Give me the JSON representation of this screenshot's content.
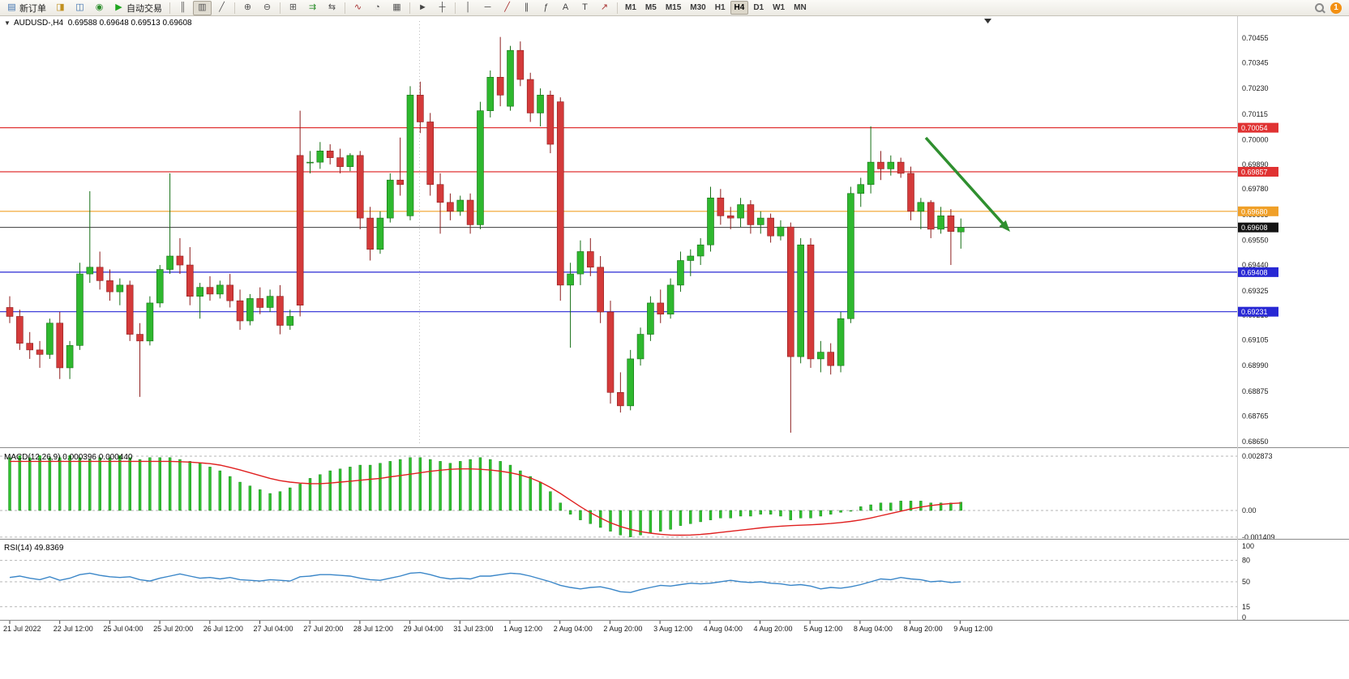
{
  "toolbar": {
    "items": [
      {
        "kind": "labelbtn",
        "name": "new-order-button",
        "icon": "new-order-icon",
        "label": "新订单"
      },
      {
        "kind": "icon",
        "name": "profiles-button",
        "icon": "profiles-icon"
      },
      {
        "kind": "icon",
        "name": "market-watch-button",
        "icon": "market-watch-icon"
      },
      {
        "kind": "icon",
        "name": "data-window-button",
        "icon": "data-window-icon"
      },
      {
        "kind": "labelbtn",
        "name": "auto-trading-button",
        "icon": "play-icon",
        "label": "自动交易"
      },
      {
        "kind": "sep"
      },
      {
        "kind": "icon",
        "name": "bar-chart-button",
        "icon": "bars-icon"
      },
      {
        "kind": "icon",
        "name": "candlestick-chart-button",
        "icon": "candles-icon",
        "active": true
      },
      {
        "kind": "icon",
        "name": "line-chart-button",
        "icon": "line-chart-icon"
      },
      {
        "kind": "sep"
      },
      {
        "kind": "icon",
        "name": "zoom-in-button",
        "icon": "zoom-in-icon"
      },
      {
        "kind": "icon",
        "name": "zoom-out-button",
        "icon": "zoom-out-icon"
      },
      {
        "kind": "sep"
      },
      {
        "kind": "icon",
        "name": "tile-windows-button",
        "icon": "tile-icon"
      },
      {
        "kind": "icon",
        "name": "auto-scroll-button",
        "icon": "auto-scroll-icon"
      },
      {
        "kind": "icon",
        "name": "chart-shift-button",
        "icon": "chart-shift-icon"
      },
      {
        "kind": "sep"
      },
      {
        "kind": "icon",
        "name": "indicators-button",
        "icon": "indicators-icon"
      },
      {
        "kind": "icon",
        "name": "periods-button",
        "icon": "clock-icon"
      },
      {
        "kind": "icon",
        "name": "templates-button",
        "icon": "template-icon"
      },
      {
        "kind": "sep"
      },
      {
        "kind": "icon",
        "name": "cursor-button",
        "icon": "cursor-icon"
      },
      {
        "kind": "icon",
        "name": "crosshair-button",
        "icon": "crosshair-icon"
      },
      {
        "kind": "sep"
      },
      {
        "kind": "icon",
        "name": "vertical-line-button",
        "icon": "vline-icon"
      },
      {
        "kind": "icon",
        "name": "horizontal-line-button",
        "icon": "hline-icon"
      },
      {
        "kind": "icon",
        "name": "trendline-button",
        "icon": "trendline-icon"
      },
      {
        "kind": "icon",
        "name": "channel-button",
        "icon": "channel-icon"
      },
      {
        "kind": "icon",
        "name": "fibonacci-button",
        "icon": "fibonacci-icon"
      },
      {
        "kind": "icon",
        "name": "text-button",
        "icon": "text-icon"
      },
      {
        "kind": "icon",
        "name": "label-button",
        "icon": "label-icon"
      },
      {
        "kind": "icon",
        "name": "arrows-button",
        "icon": "arrows-icon"
      },
      {
        "kind": "sep"
      }
    ],
    "timeframes": [
      "M1",
      "M5",
      "M15",
      "M30",
      "H1",
      "H4",
      "D1",
      "W1",
      "MN"
    ],
    "active_timeframe": "H4",
    "notification_count": "1"
  },
  "chart": {
    "symbol_period": "AUDUSD-,H4",
    "ohlc": "0.69588 0.69648 0.69513 0.69608",
    "price_axis": [
      "0.70455",
      "0.70345",
      "0.70230",
      "0.70115",
      "0.70000",
      "0.69890",
      "0.69780",
      "0.69665",
      "0.69550",
      "0.69440",
      "0.69325",
      "0.69215",
      "0.69105",
      "0.68990",
      "0.68875",
      "0.68765",
      "0.68650"
    ],
    "hlines": [
      {
        "price": "0.70054",
        "color": "#e03232",
        "name": "resistance-line-upper"
      },
      {
        "price": "0.69857",
        "color": "#e03232",
        "name": "resistance-line-lower"
      },
      {
        "price": "0.69680",
        "color": "#f0a028",
        "name": "pivot-line"
      },
      {
        "price": "0.69608",
        "color": "#3a3a3a",
        "name": "current-price-line",
        "current": true,
        "box": "#141414"
      },
      {
        "price": "0.69408",
        "color": "#2828d4",
        "name": "support-line-upper"
      },
      {
        "price": "0.69231",
        "color": "#2828d4",
        "name": "support-line-lower"
      }
    ],
    "time_axis": [
      "21 Jul 2022",
      "22 Jul 12:00",
      "25 Jul 04:00",
      "25 Jul 20:00",
      "26 Jul 12:00",
      "27 Jul 04:00",
      "27 Jul 20:00",
      "28 Jul 12:00",
      "29 Jul 04:00",
      "31 Jul 23:00",
      "1 Aug 12:00",
      "2 Aug 04:00",
      "2 Aug 20:00",
      "3 Aug 12:00",
      "4 Aug 04:00",
      "4 Aug 20:00",
      "5 Aug 12:00",
      "8 Aug 04:00",
      "8 Aug 20:00",
      "9 Aug 12:00"
    ]
  },
  "macd": {
    "label": "MACD(12,26,9) 0.000396 0.000440",
    "axis": [
      "0.002873",
      "0.00",
      "-0.001409"
    ],
    "axis_values": [
      0.002873,
      0,
      -0.001409
    ]
  },
  "rsi": {
    "label": "RSI(14) 49.8369",
    "axis": [
      "100",
      "80",
      "50",
      "15",
      "0"
    ],
    "axis_values": [
      100,
      80,
      50,
      15,
      0
    ],
    "level_lines": [
      80,
      50,
      15
    ]
  },
  "chart_data": [
    {
      "type": "candlestick",
      "title": "AUDUSD-,H4",
      "up_color": "#2eb82e",
      "down_color": "#d43a3a",
      "ylim": [
        0.6865,
        0.70455
      ],
      "candles": [
        [
          0.6925,
          0.693,
          0.6918,
          0.6921
        ],
        [
          0.6921,
          0.6924,
          0.6906,
          0.6909
        ],
        [
          0.6909,
          0.6914,
          0.6902,
          0.6906
        ],
        [
          0.6906,
          0.691,
          0.6898,
          0.6904
        ],
        [
          0.6904,
          0.692,
          0.6902,
          0.6918
        ],
        [
          0.6918,
          0.6923,
          0.6893,
          0.6898
        ],
        [
          0.6898,
          0.691,
          0.6893,
          0.6908
        ],
        [
          0.6908,
          0.6945,
          0.6906,
          0.694
        ],
        [
          0.694,
          0.6977,
          0.6936,
          0.6943
        ],
        [
          0.6943,
          0.695,
          0.6933,
          0.6937
        ],
        [
          0.6937,
          0.6942,
          0.6928,
          0.6932
        ],
        [
          0.6932,
          0.6938,
          0.6926,
          0.6935
        ],
        [
          0.6935,
          0.6937,
          0.691,
          0.6913
        ],
        [
          0.6913,
          0.6918,
          0.6885,
          0.691
        ],
        [
          0.691,
          0.693,
          0.6908,
          0.6927
        ],
        [
          0.6927,
          0.6944,
          0.6925,
          0.6942
        ],
        [
          0.6942,
          0.6985,
          0.694,
          0.6948
        ],
        [
          0.6948,
          0.6956,
          0.694,
          0.6944
        ],
        [
          0.6944,
          0.6952,
          0.6926,
          0.693
        ],
        [
          0.693,
          0.6936,
          0.692,
          0.6934
        ],
        [
          0.6934,
          0.6939,
          0.6928,
          0.6931
        ],
        [
          0.6931,
          0.6937,
          0.6929,
          0.6935
        ],
        [
          0.6935,
          0.694,
          0.6925,
          0.6928
        ],
        [
          0.6928,
          0.6933,
          0.6915,
          0.6919
        ],
        [
          0.6919,
          0.6931,
          0.6917,
          0.6929
        ],
        [
          0.6929,
          0.6934,
          0.6922,
          0.6925
        ],
        [
          0.6925,
          0.6933,
          0.6923,
          0.693
        ],
        [
          0.693,
          0.6935,
          0.6913,
          0.6917
        ],
        [
          0.6917,
          0.6924,
          0.6915,
          0.6921
        ],
        [
          0.6993,
          0.7013,
          0.6921,
          0.6926
        ],
        [
          0.699,
          0.6995,
          0.6985,
          0.699
        ],
        [
          0.699,
          0.6999,
          0.6987,
          0.6995
        ],
        [
          0.6995,
          0.6998,
          0.6989,
          0.6992
        ],
        [
          0.6992,
          0.6996,
          0.6985,
          0.6988
        ],
        [
          0.6988,
          0.6994,
          0.6986,
          0.6993
        ],
        [
          0.6993,
          0.6995,
          0.696,
          0.6965
        ],
        [
          0.6965,
          0.697,
          0.6946,
          0.6951
        ],
        [
          0.6951,
          0.6968,
          0.6949,
          0.6965
        ],
        [
          0.6965,
          0.6985,
          0.6963,
          0.6982
        ],
        [
          0.6982,
          0.7001,
          0.6975,
          0.698
        ],
        [
          0.6966,
          0.7024,
          0.6964,
          0.702
        ],
        [
          0.702,
          0.7026,
          0.7003,
          0.7008
        ],
        [
          0.7008,
          0.7012,
          0.6975,
          0.698
        ],
        [
          0.698,
          0.6985,
          0.6958,
          0.6972
        ],
        [
          0.6972,
          0.6976,
          0.6964,
          0.6968
        ],
        [
          0.6968,
          0.6975,
          0.6966,
          0.6973
        ],
        [
          0.6973,
          0.6976,
          0.6958,
          0.6962
        ],
        [
          0.6962,
          0.7017,
          0.696,
          0.7013
        ],
        [
          0.7013,
          0.7031,
          0.701,
          0.7028
        ],
        [
          0.7028,
          0.7046,
          0.7015,
          0.702
        ],
        [
          0.7015,
          0.7042,
          0.7013,
          0.704
        ],
        [
          0.704,
          0.7044,
          0.7024,
          0.7027
        ],
        [
          0.7027,
          0.703,
          0.7008,
          0.7012
        ],
        [
          0.7012,
          0.7023,
          0.7006,
          0.702
        ],
        [
          0.702,
          0.7022,
          0.6994,
          0.6998
        ],
        [
          0.7017,
          0.7019,
          0.6928,
          0.6935
        ],
        [
          0.6935,
          0.6945,
          0.6907,
          0.694
        ],
        [
          0.694,
          0.6955,
          0.6935,
          0.695
        ],
        [
          0.695,
          0.6956,
          0.6939,
          0.6943
        ],
        [
          0.6943,
          0.6948,
          0.6918,
          0.6923
        ],
        [
          0.6923,
          0.6928,
          0.6882,
          0.6887
        ],
        [
          0.6887,
          0.6896,
          0.6878,
          0.6881
        ],
        [
          0.6881,
          0.6906,
          0.6879,
          0.6902
        ],
        [
          0.6902,
          0.6916,
          0.6899,
          0.6913
        ],
        [
          0.6913,
          0.693,
          0.691,
          0.6927
        ],
        [
          0.6927,
          0.6933,
          0.6918,
          0.6922
        ],
        [
          0.6922,
          0.6938,
          0.692,
          0.6935
        ],
        [
          0.6935,
          0.695,
          0.6932,
          0.6946
        ],
        [
          0.6946,
          0.6951,
          0.6939,
          0.6948
        ],
        [
          0.6948,
          0.6956,
          0.6944,
          0.6953
        ],
        [
          0.6953,
          0.6979,
          0.695,
          0.6974
        ],
        [
          0.6974,
          0.6978,
          0.6962,
          0.6966
        ],
        [
          0.6966,
          0.697,
          0.696,
          0.6965
        ],
        [
          0.6965,
          0.6974,
          0.6961,
          0.6971
        ],
        [
          0.6971,
          0.6973,
          0.6958,
          0.6962
        ],
        [
          0.6962,
          0.6968,
          0.6958,
          0.6965
        ],
        [
          0.6965,
          0.6967,
          0.6954,
          0.6957
        ],
        [
          0.6957,
          0.6964,
          0.6955,
          0.6961
        ],
        [
          0.6961,
          0.6963,
          0.6869,
          0.6903
        ],
        [
          0.6903,
          0.6956,
          0.69,
          0.6953
        ],
        [
          0.6953,
          0.6956,
          0.6898,
          0.6902
        ],
        [
          0.6902,
          0.691,
          0.6896,
          0.6905
        ],
        [
          0.6905,
          0.6909,
          0.6895,
          0.6899
        ],
        [
          0.6899,
          0.6923,
          0.6896,
          0.692
        ],
        [
          0.692,
          0.6979,
          0.6918,
          0.6976
        ],
        [
          0.6976,
          0.6983,
          0.697,
          0.698
        ],
        [
          0.698,
          0.7006,
          0.6976,
          0.699
        ],
        [
          0.699,
          0.6995,
          0.6982,
          0.6987
        ],
        [
          0.6987,
          0.6993,
          0.6984,
          0.699
        ],
        [
          0.699,
          0.6992,
          0.6983,
          0.6985
        ],
        [
          0.6985,
          0.6988,
          0.6964,
          0.6968
        ],
        [
          0.6968,
          0.6974,
          0.696,
          0.6972
        ],
        [
          0.6972,
          0.6973,
          0.6956,
          0.696
        ],
        [
          0.696,
          0.697,
          0.6958,
          0.6966
        ],
        [
          0.6966,
          0.6969,
          0.6944,
          0.6959
        ],
        [
          0.69588,
          0.69648,
          0.69513,
          0.69608
        ]
      ]
    },
    {
      "type": "bar",
      "name": "MACD histogram",
      "color": "#2fbf2f",
      "ylim": [
        -0.001409,
        0.002873
      ],
      "values": [
        0.0028,
        0.0029,
        0.0028,
        0.0029,
        0.0028,
        0.0028,
        0.0029,
        0.0028,
        0.0027,
        0.0028,
        0.0028,
        0.0029,
        0.0028,
        0.0027,
        0.0028,
        0.0028,
        0.0028,
        0.0027,
        0.0026,
        0.0025,
        0.0023,
        0.0021,
        0.0018,
        0.0015,
        0.0013,
        0.0011,
        0.0009,
        0.001,
        0.0012,
        0.0014,
        0.0017,
        0.0019,
        0.0021,
        0.0022,
        0.0023,
        0.0024,
        0.0024,
        0.0025,
        0.0026,
        0.0027,
        0.0028,
        0.0028,
        0.0027,
        0.0026,
        0.0025,
        0.0026,
        0.0027,
        0.0028,
        0.0027,
        0.0026,
        0.0024,
        0.0021,
        0.0018,
        0.0015,
        0.001,
        0.0004,
        -0.0002,
        -0.0005,
        -0.0007,
        -0.0009,
        -0.0011,
        -0.0013,
        -0.0014,
        -0.0013,
        -0.0012,
        -0.0011,
        -0.001,
        -0.0008,
        -0.0007,
        -0.0006,
        -0.0005,
        -0.0004,
        -0.0004,
        -0.0003,
        -0.0003,
        -0.0002,
        -0.0002,
        -0.0003,
        -0.0005,
        -0.0004,
        -0.0004,
        -0.0003,
        -0.0002,
        -0.0001,
        0.0,
        0.0002,
        0.0003,
        0.0004,
        0.0004,
        0.0005,
        0.0005,
        0.0005,
        0.0004,
        0.0004,
        0.0004,
        0.00044
      ],
      "signal": {
        "name": "MACD signal",
        "color": "#e02020",
        "values": [
          0.0026,
          0.0026,
          0.0026,
          0.0026,
          0.0026,
          0.0026,
          0.0026,
          0.0026,
          0.0026,
          0.0026,
          0.0026,
          0.0026,
          0.0026,
          0.0026,
          0.0026,
          0.0026,
          0.0026,
          0.00258,
          0.00256,
          0.00252,
          0.00248,
          0.0024,
          0.00228,
          0.00215,
          0.002,
          0.00185,
          0.0017,
          0.00158,
          0.0015,
          0.00145,
          0.00142,
          0.00142,
          0.00145,
          0.0015,
          0.00155,
          0.0016,
          0.00165,
          0.0017,
          0.00178,
          0.00185,
          0.00192,
          0.002,
          0.00207,
          0.00213,
          0.00218,
          0.0022,
          0.0022,
          0.00218,
          0.00214,
          0.00208,
          0.002,
          0.00188,
          0.00172,
          0.0015,
          0.00122,
          0.0009,
          0.00055,
          0.0002,
          -0.00012,
          -0.0004,
          -0.00065,
          -0.00085,
          -0.001,
          -0.00112,
          -0.0012,
          -0.00126,
          -0.0013,
          -0.00131,
          -0.0013,
          -0.00127,
          -0.00122,
          -0.00116,
          -0.0011,
          -0.00104,
          -0.00098,
          -0.00092,
          -0.00087,
          -0.00083,
          -0.0008,
          -0.00078,
          -0.00076,
          -0.00073,
          -0.00069,
          -0.00064,
          -0.00058,
          -0.0005,
          -0.0004,
          -0.00028,
          -0.00016,
          -4e-05,
          8e-05,
          0.00018,
          0.00026,
          0.00032,
          0.00037,
          0.000396
        ]
      }
    },
    {
      "type": "line",
      "name": "RSI(14)",
      "color": "#3a86c8",
      "ylim": [
        0,
        100
      ],
      "values": [
        56,
        58,
        55,
        53,
        57,
        52,
        55,
        60,
        62,
        59,
        57,
        56,
        57,
        53,
        51,
        55,
        58,
        61,
        58,
        55,
        56,
        54,
        56,
        53,
        52,
        51,
        53,
        52,
        51,
        57,
        58,
        60,
        60,
        59,
        58,
        55,
        53,
        52,
        55,
        58,
        62,
        63,
        60,
        56,
        54,
        55,
        54,
        58,
        58,
        60,
        62,
        61,
        58,
        54,
        50,
        45,
        42,
        40,
        42,
        43,
        40,
        36,
        35,
        39,
        42,
        45,
        44,
        46,
        48,
        47,
        48,
        50,
        52,
        50,
        49,
        50,
        48,
        47,
        45,
        46,
        44,
        40,
        42,
        41,
        43,
        46,
        50,
        54,
        53,
        56,
        54,
        53,
        50,
        51,
        49,
        49.8369
      ]
    }
  ]
}
